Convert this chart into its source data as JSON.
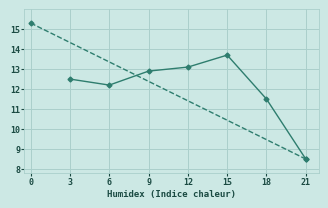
{
  "line1_x": [
    0,
    21
  ],
  "line1_y": [
    15.3,
    8.5
  ],
  "line2_x": [
    3,
    6,
    9,
    12,
    15,
    18,
    21
  ],
  "line2_y": [
    12.5,
    12.2,
    12.9,
    13.1,
    13.7,
    11.5,
    8.5
  ],
  "line_color": "#2e7d6e",
  "marker": "D",
  "marker_size": 2.5,
  "line_width": 1.0,
  "xlabel": "Humidex (Indice chaleur)",
  "xlim": [
    -0.5,
    22
  ],
  "ylim": [
    7.8,
    16.0
  ],
  "yticks": [
    8,
    9,
    10,
    11,
    12,
    13,
    14,
    15
  ],
  "xticks": [
    0,
    3,
    6,
    9,
    12,
    15,
    18,
    21
  ],
  "bg_color": "#cce8e4",
  "grid_color": "#aacfcb",
  "font_family": "monospace"
}
